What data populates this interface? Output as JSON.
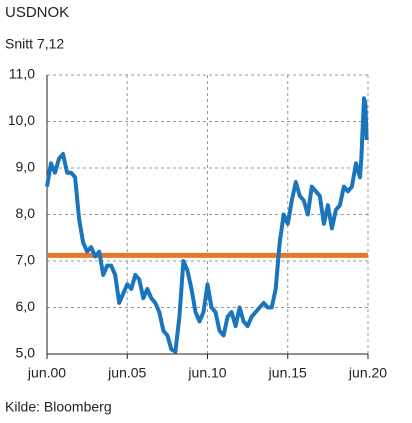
{
  "chart_data": {
    "type": "line",
    "title": "USDNOK",
    "source": "Kilde: Bloomberg",
    "average": {
      "label": "Snitt 7,12",
      "value": 7.12,
      "color": "#e8772e"
    },
    "x": [
      "2000-06",
      "2000-09",
      "2000-12",
      "2001-03",
      "2001-06",
      "2001-09",
      "2001-12",
      "2002-03",
      "2002-06",
      "2002-09",
      "2002-12",
      "2003-03",
      "2003-06",
      "2003-09",
      "2003-12",
      "2004-03",
      "2004-06",
      "2004-09",
      "2004-12",
      "2005-03",
      "2005-06",
      "2005-09",
      "2005-12",
      "2006-03",
      "2006-06",
      "2006-09",
      "2006-12",
      "2007-03",
      "2007-06",
      "2007-09",
      "2007-12",
      "2008-03",
      "2008-06",
      "2008-09",
      "2008-12",
      "2009-03",
      "2009-06",
      "2009-09",
      "2009-12",
      "2010-03",
      "2010-06",
      "2010-09",
      "2010-12",
      "2011-03",
      "2011-06",
      "2011-09",
      "2011-12",
      "2012-03",
      "2012-06",
      "2012-09",
      "2012-12",
      "2013-03",
      "2013-06",
      "2013-09",
      "2013-12",
      "2014-03",
      "2014-06",
      "2014-09",
      "2014-12",
      "2015-03",
      "2015-06",
      "2015-09",
      "2015-12",
      "2016-03",
      "2016-06",
      "2016-09",
      "2016-12",
      "2017-03",
      "2017-06",
      "2017-09",
      "2017-12",
      "2018-03",
      "2018-06",
      "2018-09",
      "2018-12",
      "2019-03",
      "2019-06",
      "2019-09",
      "2019-12",
      "2020-01",
      "2020-03",
      "2020-04",
      "2020-05"
    ],
    "series": [
      {
        "name": "USDNOK",
        "color": "#1b75bc",
        "values": [
          8.6,
          9.1,
          8.9,
          9.2,
          9.3,
          8.9,
          8.9,
          8.8,
          7.9,
          7.4,
          7.2,
          7.3,
          7.1,
          7.2,
          6.7,
          6.9,
          6.9,
          6.7,
          6.1,
          6.3,
          6.5,
          6.4,
          6.7,
          6.6,
          6.2,
          6.4,
          6.2,
          6.1,
          5.9,
          5.5,
          5.4,
          5.1,
          5.05,
          5.8,
          7.0,
          6.8,
          6.4,
          5.9,
          5.7,
          5.9,
          6.5,
          6.0,
          5.9,
          5.5,
          5.4,
          5.8,
          5.9,
          5.6,
          6.0,
          5.7,
          5.6,
          5.8,
          5.9,
          6.0,
          6.1,
          6.0,
          6.0,
          6.4,
          7.4,
          8.0,
          7.8,
          8.3,
          8.7,
          8.4,
          8.3,
          8.0,
          8.6,
          8.5,
          8.4,
          7.8,
          8.2,
          7.7,
          8.1,
          8.2,
          8.6,
          8.5,
          8.6,
          9.1,
          8.8,
          9.2,
          10.5,
          10.4,
          9.6
        ]
      }
    ],
    "xlim": [
      "2000-06",
      "2020-06"
    ],
    "xticks": [
      {
        "value": "2000-06",
        "label": "jun.00"
      },
      {
        "value": "2005-06",
        "label": "jun.05"
      },
      {
        "value": "2010-06",
        "label": "jun.10"
      },
      {
        "value": "2015-06",
        "label": "jun.15"
      },
      {
        "value": "2020-06",
        "label": "jun.20"
      }
    ],
    "ylim": [
      5,
      11
    ],
    "yticks": [
      {
        "value": 5,
        "label": "5,0"
      },
      {
        "value": 6,
        "label": "6,0"
      },
      {
        "value": 7,
        "label": "7,0"
      },
      {
        "value": 8,
        "label": "8,0"
      },
      {
        "value": 9,
        "label": "9,0"
      },
      {
        "value": 10,
        "label": "10,0"
      },
      {
        "value": 11,
        "label": "11,0"
      }
    ],
    "grid": true
  }
}
